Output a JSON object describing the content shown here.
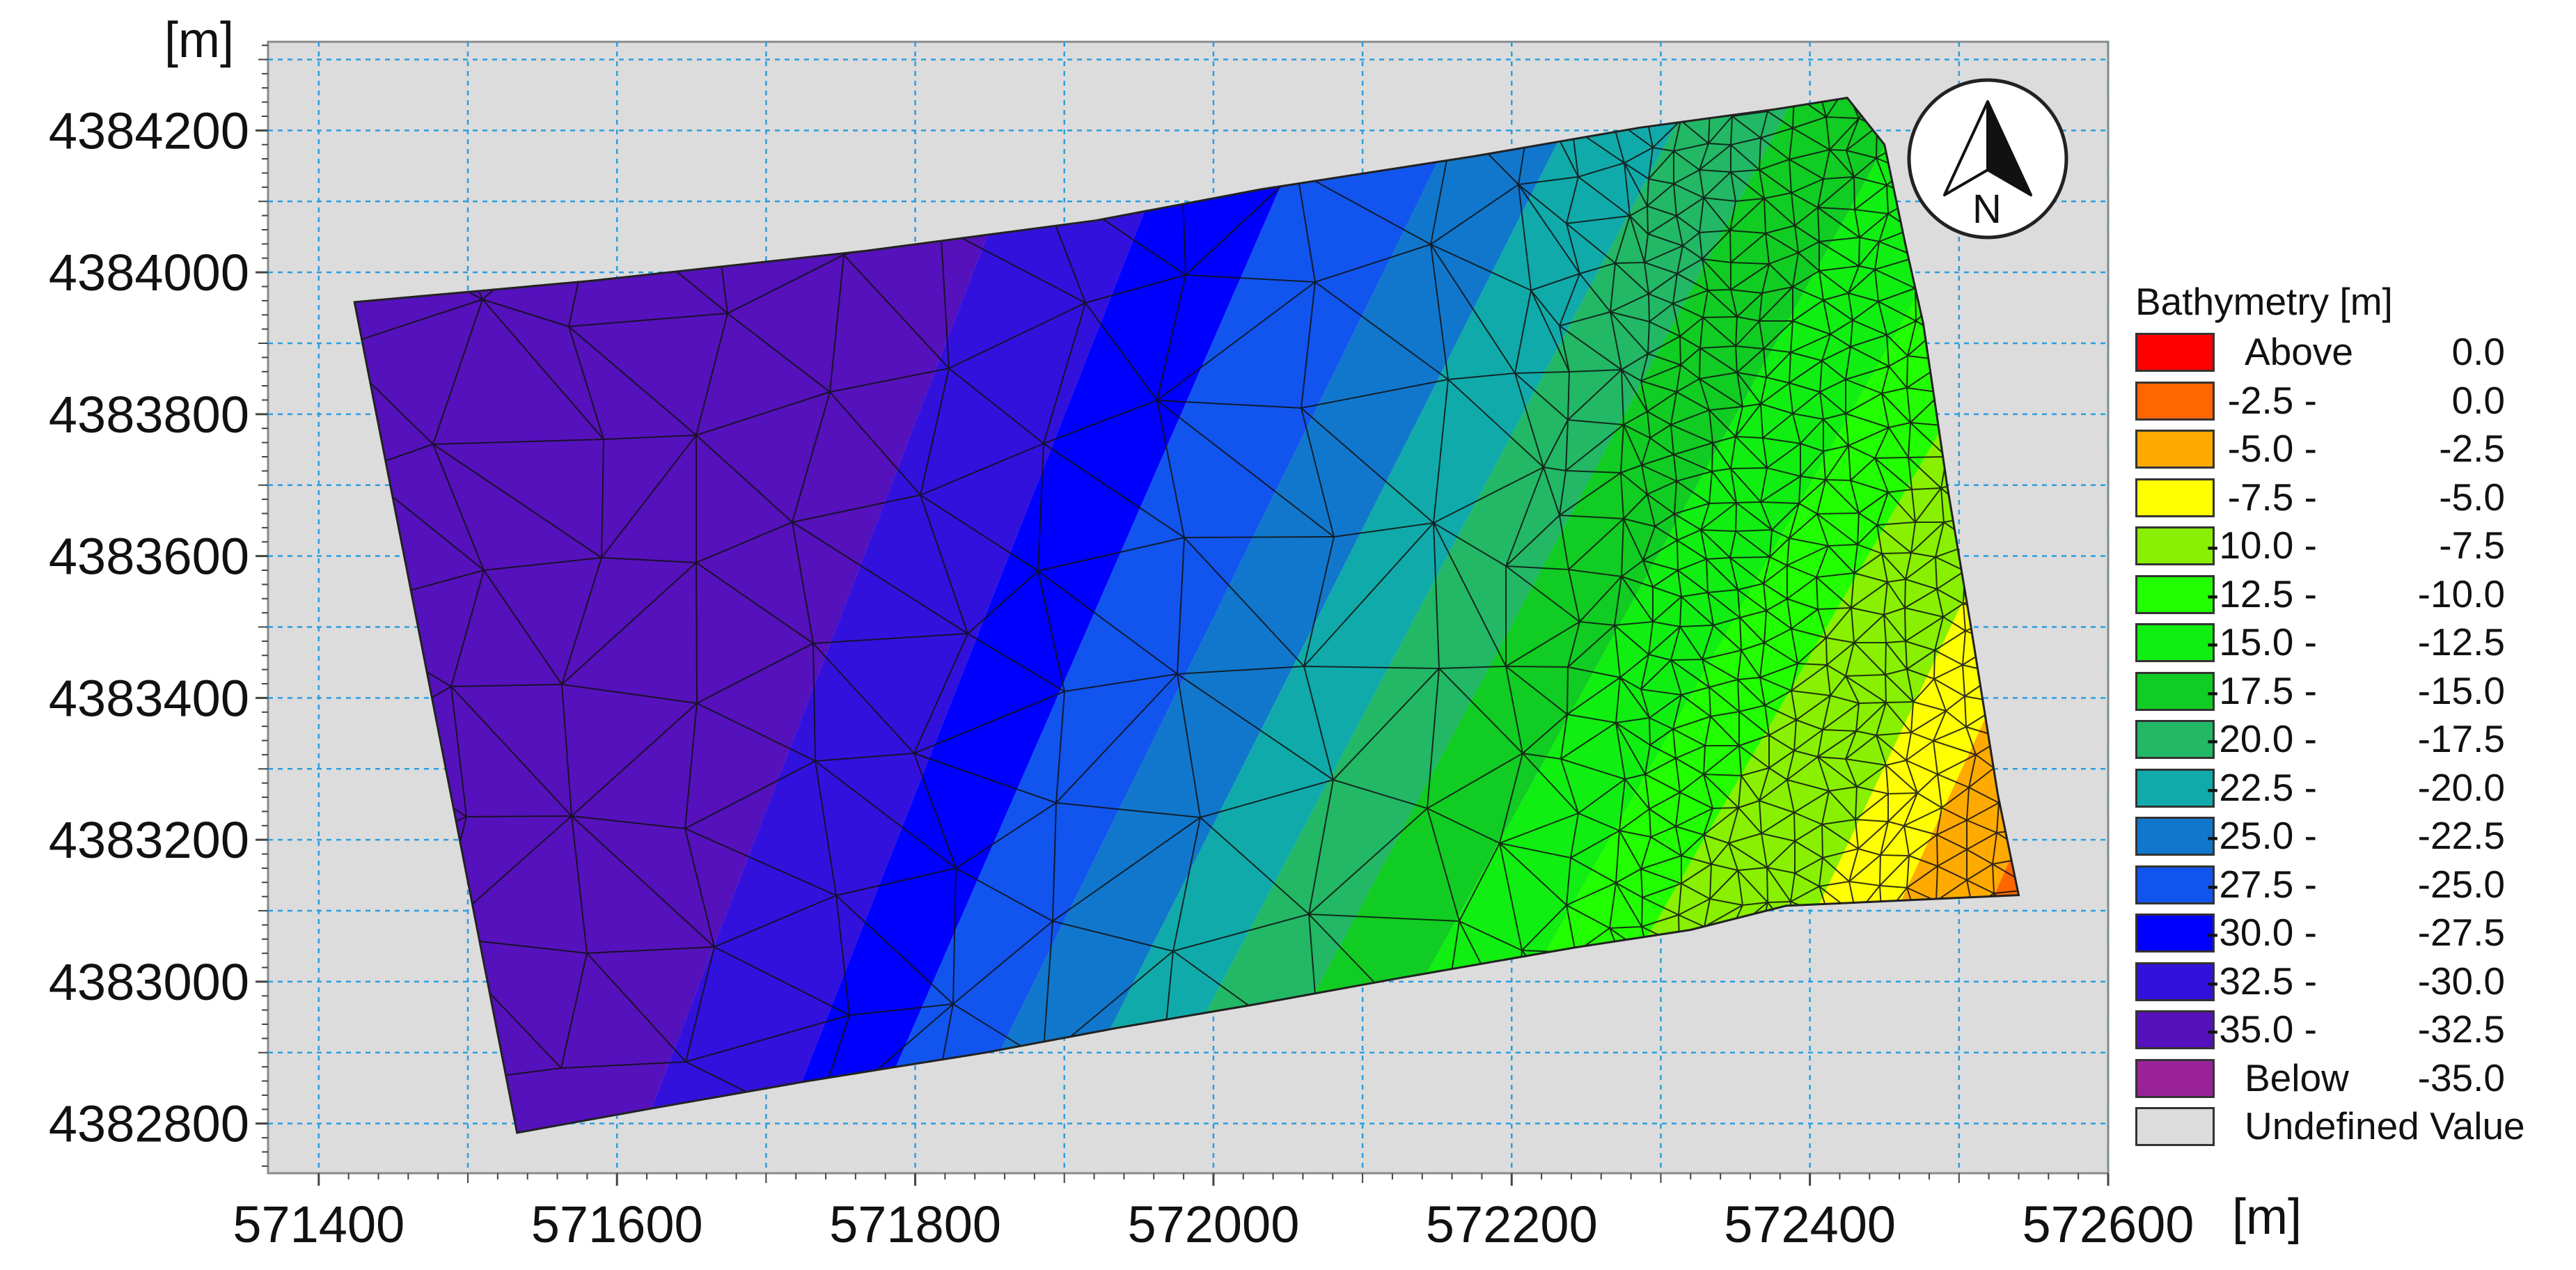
{
  "map": {
    "unit_y": "[m]",
    "unit_x": "[m]",
    "x_axis": {
      "range": [
        571366,
        572600
      ],
      "ticks": [
        571400,
        571600,
        571800,
        572000,
        572200,
        572400,
        572600
      ],
      "tick_labels": [
        "571400",
        "571600",
        "571800",
        "572000",
        "572200",
        "572400",
        "572600"
      ]
    },
    "y_axis": {
      "range": [
        4382730,
        4384325
      ],
      "ticks": [
        4382800,
        4383000,
        4383200,
        4383400,
        4383600,
        4383800,
        4384000,
        4384200
      ],
      "tick_labels": [
        "4382800",
        "4383000",
        "4383200",
        "4383400",
        "4383600",
        "4383800",
        "4384000",
        "4384200"
      ]
    },
    "grid": true,
    "grid_color": "#2a9fe0",
    "background_color": "#dcdcdc",
    "north_arrow": {
      "icon": "north-arrow-icon",
      "label": "N"
    },
    "domain_polygon": [
      [
        571424,
        4383958
      ],
      [
        571583,
        4383988
      ],
      [
        571766,
        4384030
      ],
      [
        571921,
        4384073
      ],
      [
        572032,
        4384117
      ],
      [
        572176,
        4384164
      ],
      [
        572286,
        4384204
      ],
      [
        572377,
        4384230
      ],
      [
        572425,
        4384246
      ],
      [
        572450,
        4384180
      ],
      [
        572464,
        4384040
      ],
      [
        572476,
        4383928
      ],
      [
        572492,
        4383700
      ],
      [
        572508,
        4383500
      ],
      [
        572526,
        4383264
      ],
      [
        572540,
        4383122
      ],
      [
        572384,
        4383107
      ],
      [
        572320,
        4383073
      ],
      [
        572242,
        4383048
      ],
      [
        572122,
        4383004
      ],
      [
        572028,
        4382968
      ],
      [
        571936,
        4382935
      ],
      [
        571847,
        4382900
      ],
      [
        571728,
        4382860
      ],
      [
        571625,
        4382822
      ],
      [
        571533,
        4382787
      ]
    ]
  },
  "legend": {
    "title": "Bathymetry [m]",
    "items": [
      {
        "a": "Above",
        "b": "0.0",
        "color": "#ff0000"
      },
      {
        "a": "-2.5 -",
        "b": "0.0",
        "color": "#ff6600"
      },
      {
        "a": "-5.0 -",
        "b": "-2.5",
        "color": "#ffaa00"
      },
      {
        "a": "-7.5 -",
        "b": "-5.0",
        "color": "#ffff00"
      },
      {
        "a": "-10.0 -",
        "b": "-7.5",
        "color": "#88f000"
      },
      {
        "a": "-12.5 -",
        "b": "-10.0",
        "color": "#22ff00"
      },
      {
        "a": "-15.0 -",
        "b": "-12.5",
        "color": "#11ee11"
      },
      {
        "a": "-17.5 -",
        "b": "-15.0",
        "color": "#11cc22"
      },
      {
        "a": "-20.0 -",
        "b": "-17.5",
        "color": "#22b866"
      },
      {
        "a": "-22.5 -",
        "b": "-20.0",
        "color": "#11aaaa"
      },
      {
        "a": "-25.0 -",
        "b": "-22.5",
        "color": "#1177cc"
      },
      {
        "a": "-27.5 -",
        "b": "-25.0",
        "color": "#1155ee"
      },
      {
        "a": "-30.0 -",
        "b": "-27.5",
        "color": "#0000ff"
      },
      {
        "a": "-32.5 -",
        "b": "-30.0",
        "color": "#3311dd"
      },
      {
        "a": "-35.0 -",
        "b": "-32.5",
        "color": "#5511bb"
      },
      {
        "a": "Below",
        "b": "-35.0",
        "color": "#992299"
      },
      {
        "a": "Undefined Value",
        "b": "",
        "color": "#dcdcdc"
      }
    ]
  }
}
